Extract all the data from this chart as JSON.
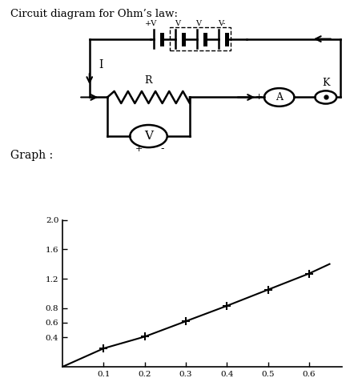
{
  "title": "Circuit diagram for Ohm’s law:",
  "graph_label": "Graph :",
  "bg_color": "#ffffff",
  "line_color": "#000000",
  "graph_x": [
    0,
    0.1,
    0.2,
    0.3,
    0.4,
    0.5,
    0.6,
    0.65
  ],
  "graph_y": [
    0,
    0.25,
    0.41,
    0.62,
    0.83,
    1.05,
    1.27,
    1.4
  ],
  "data_points_x": [
    0.1,
    0.2,
    0.3,
    0.4,
    0.5,
    0.6
  ],
  "data_points_y": [
    0.25,
    0.41,
    0.62,
    0.83,
    1.05,
    1.27
  ],
  "yticks": [
    0.4,
    0.6,
    0.8,
    1.2,
    1.6,
    2.0
  ],
  "ytick_labels": [
    "0.4",
    "0.6",
    "0.8",
    "1.2",
    "1.6",
    "2.0"
  ],
  "xticks": [
    0.1,
    0.2,
    0.3,
    0.4,
    0.5,
    0.6
  ],
  "xtick_labels": [
    "0.1",
    "0.2",
    "0.3",
    "0.4",
    "0.5",
    "0.6"
  ],
  "circ_xlim": [
    0,
    10
  ],
  "circ_ylim": [
    0,
    10
  ]
}
